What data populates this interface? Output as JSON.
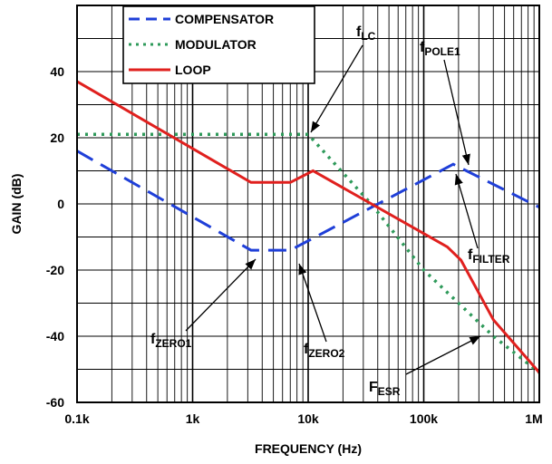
{
  "chart_data": {
    "type": "line",
    "xlabel": "FREQUENCY (Hz)",
    "ylabel": "GAIN (dB)",
    "x_scale": "log",
    "xlim": [
      100,
      1000000
    ],
    "ylim": [
      -60,
      60
    ],
    "x_ticks": [
      {
        "value": 100,
        "label": "0.1k"
      },
      {
        "value": 1000,
        "label": "1k"
      },
      {
        "value": 10000,
        "label": "10k"
      },
      {
        "value": 100000,
        "label": "100k"
      },
      {
        "value": 1000000,
        "label": "1M"
      }
    ],
    "y_ticks": [
      {
        "value": 40,
        "label": "40"
      },
      {
        "value": 20,
        "label": "20"
      },
      {
        "value": 0,
        "label": "0"
      },
      {
        "value": -20,
        "label": "-20"
      },
      {
        "value": -40,
        "label": "-40"
      },
      {
        "value": -60,
        "label": "-60"
      }
    ],
    "grid": true,
    "legend_position": "top-center",
    "series": [
      {
        "name": "COMPENSATOR",
        "color": "#1f3fd8",
        "style": "dashed",
        "x": [
          100,
          3200,
          7000,
          180000,
          1000000
        ],
        "y": [
          16,
          -14,
          -14,
          12,
          -1
        ]
      },
      {
        "name": "MODULATOR",
        "color": "#2e9a5a",
        "style": "dotted",
        "x": [
          100,
          10000,
          35000,
          100000,
          400000,
          1000000
        ],
        "y": [
          21,
          21,
          0,
          -20,
          -40,
          -51
        ]
      },
      {
        "name": "LOOP",
        "color": "#e0201e",
        "style": "solid",
        "x": [
          100,
          3200,
          7000,
          11000,
          160000,
          210000,
          400000,
          1000000
        ],
        "y": [
          37,
          6.5,
          6.5,
          10,
          -13,
          -17,
          -35,
          -51
        ]
      }
    ],
    "annotations": [
      {
        "id": "flc",
        "main": "f",
        "sub": "LC"
      },
      {
        "id": "fpole1",
        "main": "f",
        "sub": "POLE1"
      },
      {
        "id": "ffilter",
        "main": "f",
        "sub": "FILTER"
      },
      {
        "id": "fzero1",
        "main": "f",
        "sub": "ZERO1"
      },
      {
        "id": "fzero2",
        "main": "f",
        "sub": "ZERO2"
      },
      {
        "id": "fesr",
        "main": "F",
        "sub": "ESR"
      }
    ]
  }
}
